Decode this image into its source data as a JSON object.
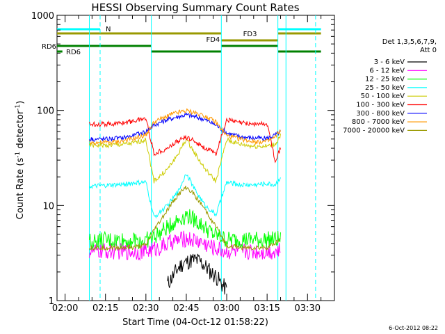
{
  "chart_data": {
    "type": "line",
    "title": "HESSI Observing Summary Count Rates",
    "xlabel": "Start Time (04-Oct-12 01:58:22)",
    "ylabel_parts": [
      "Count Rate (s",
      "-1",
      " detector",
      "-1",
      ")"
    ],
    "y_scale": "log",
    "ylim": [
      1,
      1000
    ],
    "xlim": [
      "01:57",
      "03:40"
    ],
    "x_ticks": [
      {
        "t": "02:00",
        "label": "02:00"
      },
      {
        "t": "02:15",
        "label": "02:15"
      },
      {
        "t": "02:30",
        "label": "02:30"
      },
      {
        "t": "02:45",
        "label": "02:45"
      },
      {
        "t": "03:00",
        "label": "03:00"
      },
      {
        "t": "03:15",
        "label": "03:15"
      },
      {
        "t": "03:30",
        "label": "03:30"
      }
    ],
    "y_ticks": [
      {
        "v": 1,
        "label": "1"
      },
      {
        "v": 10,
        "label": "10"
      },
      {
        "v": 100,
        "label": "100"
      },
      {
        "v": 1000,
        "label": "1000"
      }
    ],
    "legend": {
      "placement": "right",
      "header": [
        "Det 1,3,5,6,7,9,",
        "Att 0"
      ]
    },
    "series": [
      {
        "name": "3 - 6 keV",
        "color": "#000000",
        "x": [
          "02:38",
          "02:40",
          "02:42",
          "02:44",
          "02:46",
          "02:48",
          "02:50",
          "02:52",
          "02:54",
          "02:56",
          "02:58",
          "03:00"
        ],
        "y": [
          1.5,
          1.8,
          2.2,
          2.5,
          2.6,
          2.7,
          2.6,
          2.3,
          2.0,
          1.8,
          1.5,
          1.3
        ]
      },
      {
        "name": "6 - 12 keV",
        "color": "#ff00ff",
        "x": [
          "02:09",
          "02:15",
          "02:20",
          "02:25",
          "02:30",
          "02:35",
          "02:40",
          "02:45",
          "02:50",
          "02:55",
          "03:00",
          "03:05",
          "03:10",
          "03:15",
          "03:20"
        ],
        "y": [
          3.3,
          3.3,
          3.3,
          3.3,
          3.3,
          3.6,
          4.2,
          4.5,
          4.2,
          3.6,
          3.3,
          3.3,
          3.3,
          3.3,
          3.3
        ]
      },
      {
        "name": "12 - 25 keV",
        "color": "#00ff00",
        "x": [
          "02:09",
          "02:15",
          "02:20",
          "02:25",
          "02:30",
          "02:35",
          "02:40",
          "02:45",
          "02:50",
          "02:55",
          "03:00",
          "03:05",
          "03:10",
          "03:15",
          "03:20"
        ],
        "y": [
          4.2,
          4.3,
          4.3,
          4.3,
          4.3,
          5.0,
          6.5,
          8.0,
          6.5,
          5.0,
          4.4,
          4.4,
          4.4,
          4.4,
          4.4
        ]
      },
      {
        "name": "25 - 50 keV",
        "color": "#00ffff",
        "x": [
          "02:09",
          "02:15",
          "02:20",
          "02:25",
          "02:30",
          "02:33",
          "02:38",
          "02:42",
          "02:45",
          "02:48",
          "02:52",
          "02:56",
          "03:00",
          "03:05",
          "03:10",
          "03:15",
          "03:18",
          "03:20"
        ],
        "y": [
          15.8,
          16.2,
          16.5,
          17.2,
          17.5,
          7.5,
          10,
          14,
          22,
          15,
          10,
          8,
          17.5,
          16.5,
          16.5,
          17,
          16.5,
          20
        ]
      },
      {
        "name": "50 - 100 keV",
        "color": "#cccc00",
        "x": [
          "02:09",
          "02:15",
          "02:20",
          "02:25",
          "02:30",
          "02:33",
          "02:38",
          "02:42",
          "02:45",
          "02:48",
          "02:52",
          "02:56",
          "03:00",
          "03:05",
          "03:10",
          "03:15",
          "03:18",
          "03:20"
        ],
        "y": [
          43,
          43,
          43.5,
          45,
          49,
          18,
          24,
          35,
          50,
          36,
          24,
          18,
          49,
          44,
          42,
          42,
          44,
          55
        ]
      },
      {
        "name": "100 - 300 keV",
        "color": "#ff0000",
        "x": [
          "02:09",
          "02:15",
          "02:20",
          "02:25",
          "02:30",
          "02:33",
          "02:38",
          "02:42",
          "02:45",
          "02:48",
          "02:52",
          "02:56",
          "03:00",
          "03:05",
          "03:10",
          "03:15",
          "03:18",
          "03:20"
        ],
        "y": [
          72,
          72,
          73,
          77,
          83,
          35,
          40,
          48,
          52,
          48,
          40,
          35,
          80,
          74,
          72,
          72,
          30,
          40
        ]
      },
      {
        "name": "300 - 800 keV",
        "color": "#0000ff",
        "x": [
          "02:09",
          "02:15",
          "02:20",
          "02:25",
          "02:30",
          "02:33",
          "02:38",
          "02:42",
          "02:45",
          "02:48",
          "02:52",
          "02:56",
          "03:00",
          "03:05",
          "03:10",
          "03:15",
          "03:18",
          "03:20"
        ],
        "y": [
          50,
          50,
          51,
          54,
          60,
          70,
          80,
          86,
          90,
          86,
          80,
          70,
          58,
          53,
          51,
          51,
          55,
          60
        ]
      },
      {
        "name": "800 - 7000 keV",
        "color": "#ff9900",
        "x": [
          "02:09",
          "02:15",
          "02:20",
          "02:25",
          "02:30",
          "02:33",
          "02:38",
          "02:42",
          "02:45",
          "02:48",
          "02:52",
          "02:56",
          "03:00",
          "03:05",
          "03:10",
          "03:15",
          "03:18",
          "03:20"
        ],
        "y": [
          46,
          46,
          47,
          50,
          55,
          75,
          88,
          95,
          99,
          95,
          88,
          75,
          54,
          50,
          47,
          47,
          52,
          62
        ]
      },
      {
        "name": "7000 - 20000 keV",
        "color": "#999900",
        "x": [
          "02:09",
          "02:15",
          "02:20",
          "02:25",
          "02:30",
          "02:33",
          "02:38",
          "02:42",
          "02:45",
          "02:48",
          "02:52",
          "02:56",
          "03:00",
          "03:05",
          "03:10",
          "03:15",
          "03:18",
          "03:20"
        ],
        "y": [
          3.6,
          3.6,
          3.6,
          3.6,
          3.8,
          5.5,
          9,
          13,
          15.5,
          13,
          9,
          6,
          3.8,
          3.6,
          3.6,
          3.6,
          4,
          4.5
        ]
      }
    ],
    "vertical_lines": [
      {
        "t": "02:09",
        "style": "solid",
        "color": "#00ffff"
      },
      {
        "t": "02:13",
        "style": "dashed",
        "color": "#00ffff"
      },
      {
        "t": "02:32",
        "style": "solid",
        "color": "#00ffff"
      },
      {
        "t": "02:58",
        "style": "solid",
        "color": "#00ffff"
      },
      {
        "t": "03:19",
        "style": "solid",
        "color": "#00ffff"
      },
      {
        "t": "03:22",
        "style": "solid",
        "color": "#00ffff"
      },
      {
        "t": "03:33",
        "style": "dashed",
        "color": "#00ffff"
      }
    ],
    "flag_bars": [
      {
        "label": "N",
        "color": "#00ffff",
        "segments": [
          [
            "01:57",
            "02:13"
          ],
          [
            "02:13",
            "02:13"
          ],
          [
            "03:19",
            "03:35"
          ]
        ]
      },
      {
        "label": "FD3",
        "color": "#999900",
        "segments": [
          [
            "01:57",
            "02:58"
          ],
          [
            "03:19",
            "03:35"
          ]
        ]
      },
      {
        "label": "FD4",
        "color": "#999900",
        "segments": [
          [
            "02:58",
            "03:19"
          ]
        ]
      },
      {
        "label": "RD6",
        "color": "#008000",
        "segments": [
          [
            "01:57",
            "02:32"
          ],
          [
            "02:58",
            "03:19"
          ]
        ]
      },
      {
        "label": "RD6",
        "color": "#008000",
        "segments": [
          [
            "01:57",
            "01:59"
          ],
          [
            "02:32",
            "02:58"
          ],
          [
            "03:19",
            "03:35"
          ]
        ]
      }
    ]
  },
  "corner_date": "6-Oct-2012 08:22"
}
